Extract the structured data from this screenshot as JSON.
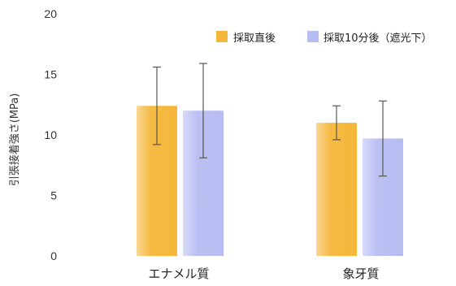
{
  "chart_data": {
    "type": "bar",
    "title": "",
    "xlabel": "",
    "ylabel": "引張接着強さ(MPa)",
    "ylim": [
      0,
      20
    ],
    "yticks": [
      0,
      5,
      10,
      15,
      20
    ],
    "categories": [
      "エナメル質",
      "象牙質"
    ],
    "series": [
      {
        "name": "採取直後",
        "color": "#f5b73a",
        "values": [
          12.4,
          11.0
        ],
        "error": [
          3.2,
          1.4
        ]
      },
      {
        "name": "採取10分後（遮光下）",
        "color": "#b7bdf2",
        "values": [
          12.0,
          9.7
        ],
        "error": [
          3.9,
          3.1
        ]
      }
    ],
    "grid": false,
    "legend_position": "top-right",
    "error_bars": true
  }
}
